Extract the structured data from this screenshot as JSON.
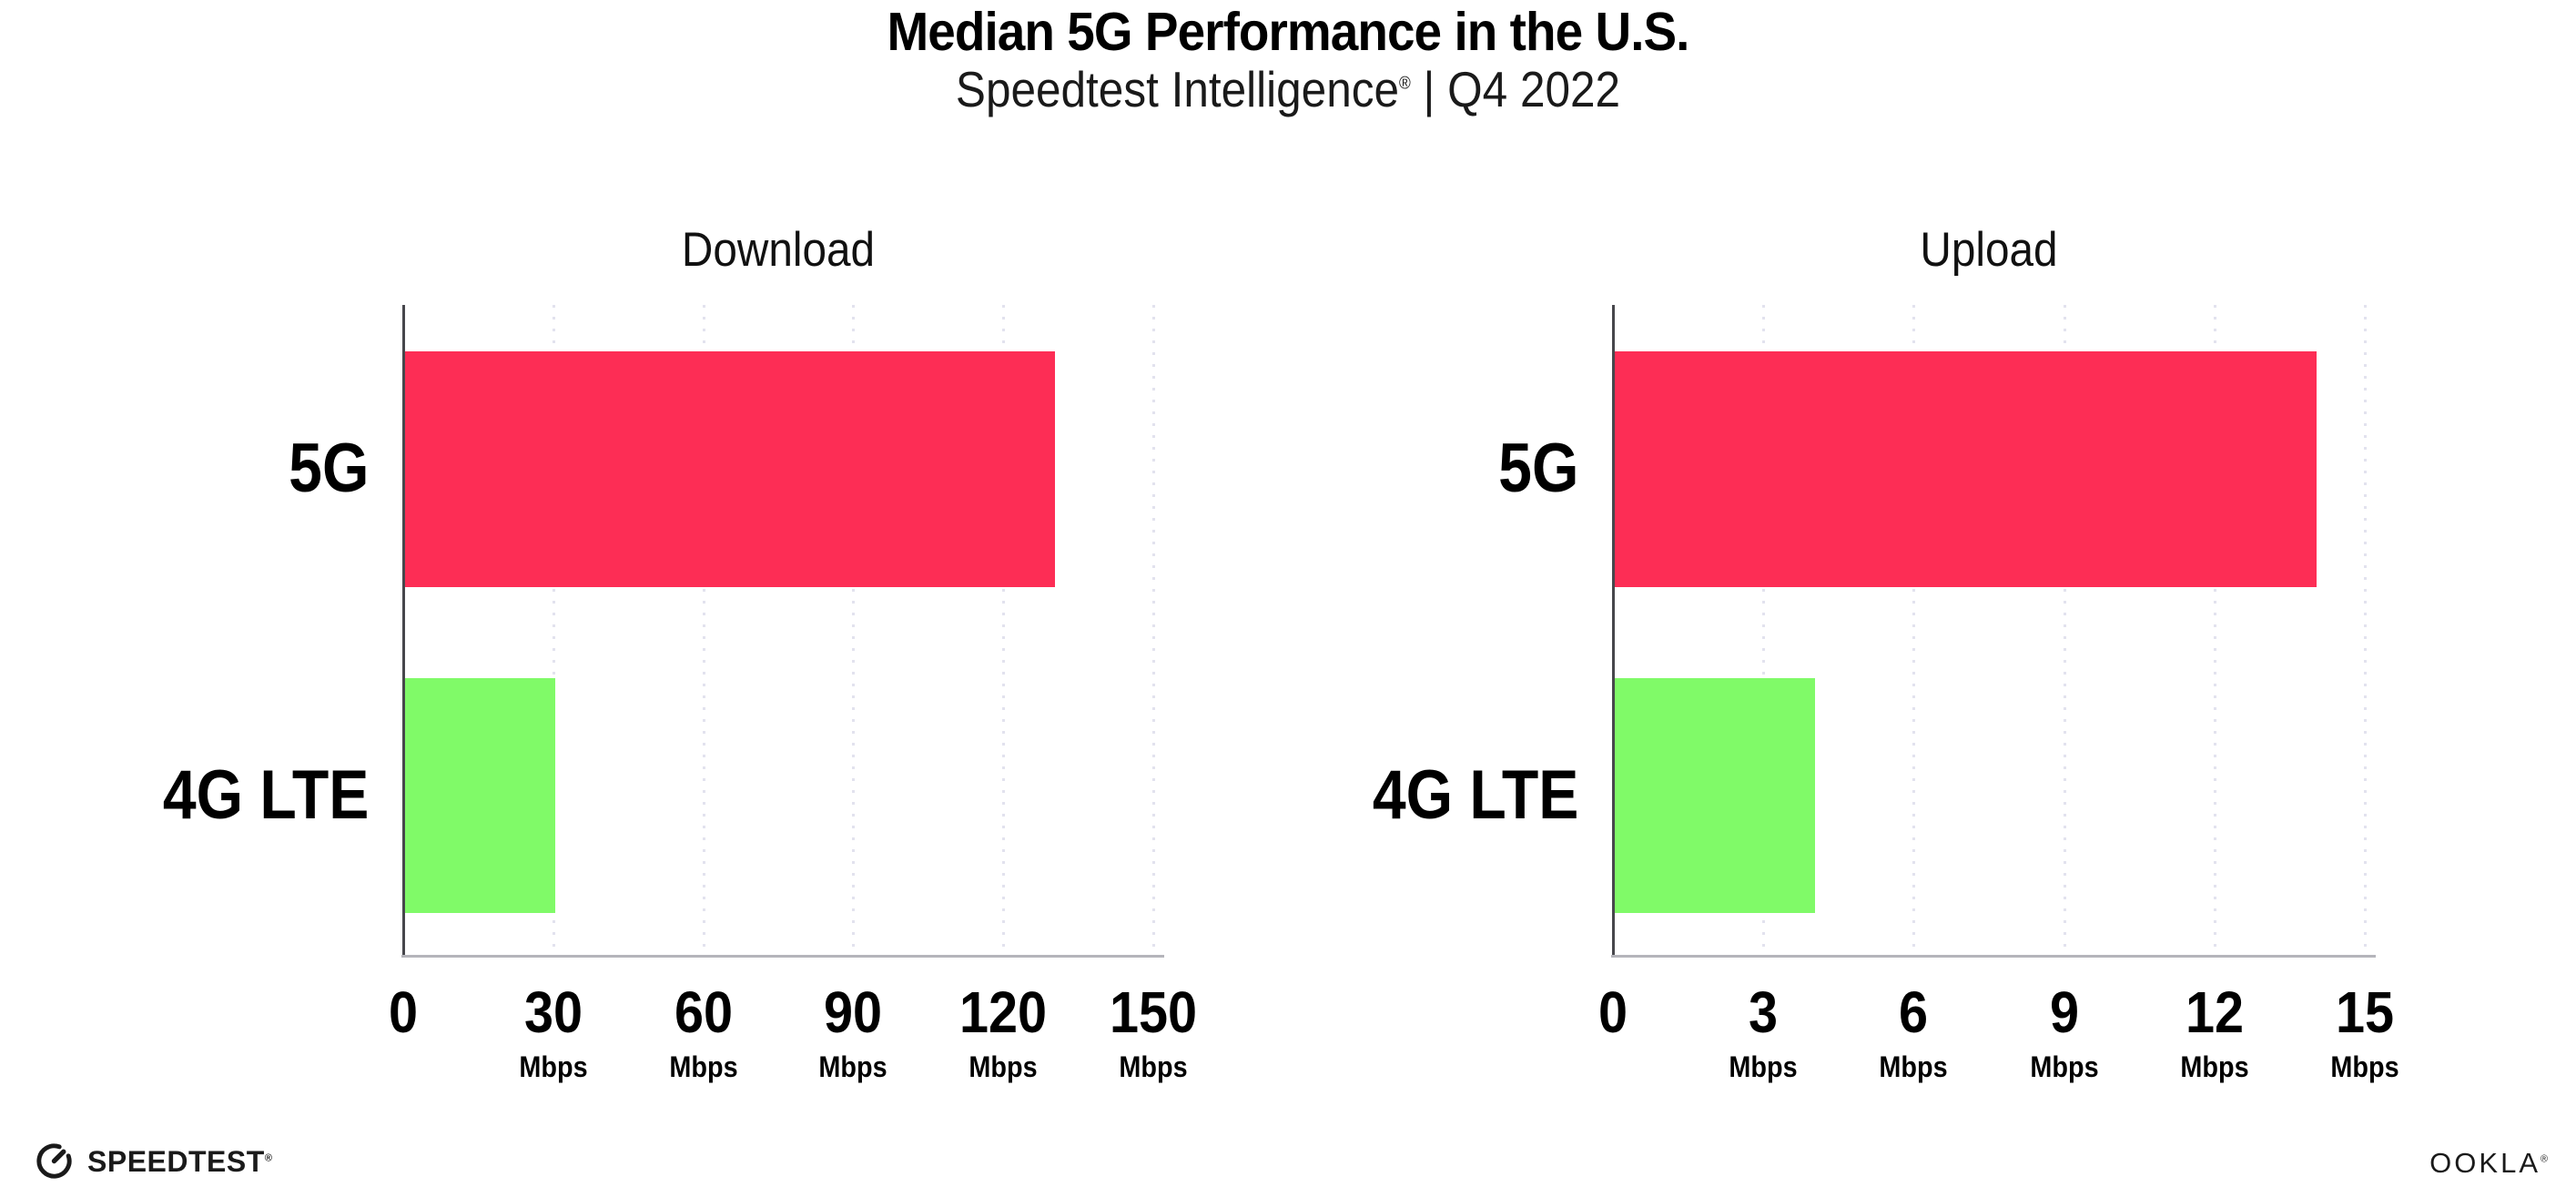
{
  "header": {
    "title": "Median 5G Performance in the U.S.",
    "subtitle_name": "Speedtest Intelligence",
    "subtitle_reg": "®",
    "subtitle_rest": " | Q4 2022"
  },
  "chart_data": [
    {
      "type": "bar",
      "orientation": "horizontal",
      "title": "Download",
      "categories": [
        "5G",
        "4G LTE"
      ],
      "values": [
        130,
        30
      ],
      "unit": "Mbps",
      "xlim": [
        0,
        150
      ],
      "xticks": [
        0,
        30,
        60,
        90,
        120,
        150
      ],
      "bar_colors": [
        "#fd2d55",
        "#80fa68"
      ],
      "grid": "vertical-dotted",
      "legend": "none"
    },
    {
      "type": "bar",
      "orientation": "horizontal",
      "title": "Upload",
      "categories": [
        "5G",
        "4G LTE"
      ],
      "values": [
        14,
        4
      ],
      "unit": "Mbps",
      "xlim": [
        0,
        15
      ],
      "xticks": [
        0,
        3,
        6,
        9,
        12,
        15
      ],
      "bar_colors": [
        "#fd2d55",
        "#80fa68"
      ],
      "grid": "vertical-dotted",
      "legend": "none"
    }
  ],
  "footer": {
    "speedtest_text": "SPEEDTEST",
    "speedtest_reg": "®",
    "ookla_text": "OOKLA",
    "ookla_reg": "®"
  }
}
